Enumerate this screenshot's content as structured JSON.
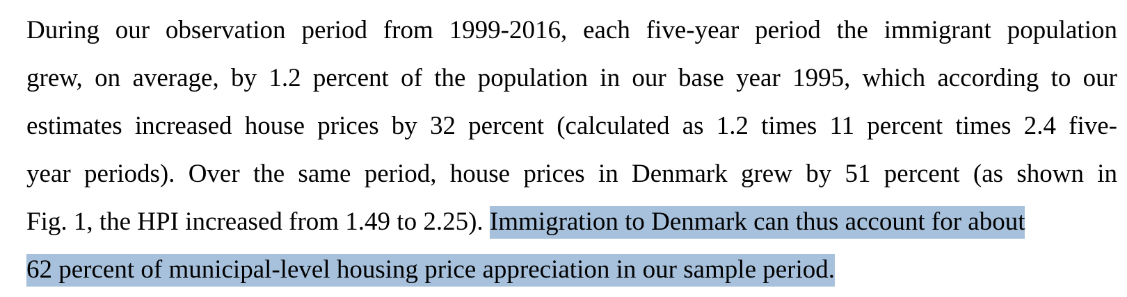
{
  "paragraph": {
    "lines": [
      "During our observation period from 1999-2016, each five-year period the immigrant population",
      "grew, on average, by 1.2 percent of the population in our base year 1995, which according to our",
      "estimates increased house prices by 32 percent (calculated as 1.2 times 11 percent times 2.4 five-",
      "year periods). Over the same period, house prices in Denmark grew by 51 percent (as shown in"
    ],
    "line5_plain": "Fig. 1, the HPI increased from 1.49 to 2.25). ",
    "line5_highlight": "Immigration to Denmark can thus account for about",
    "line6_highlight": "62 percent of municipal-level housing price appreciation in our sample period."
  },
  "colors": {
    "text": "#000000",
    "selection_highlight": "#a7c1dc",
    "background": "#ffffff"
  }
}
